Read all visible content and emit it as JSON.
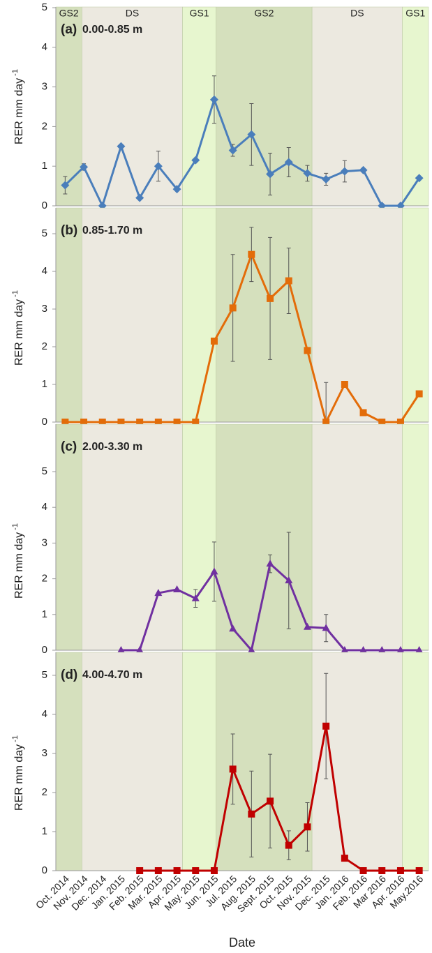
{
  "chart_data": [
    {
      "type": "line",
      "label": "(a)",
      "title": "0.00-0.85 m",
      "ylabel": "RER mm day",
      "ylabel_sup": "-1",
      "seasons": [
        "GS2",
        "DS",
        "GS1",
        "GS2",
        "DS",
        "GS1"
      ],
      "ylim": [
        0,
        5
      ],
      "yticks": [
        0,
        1,
        2,
        3,
        4,
        5
      ],
      "color": "#4a7ebb",
      "marker": "diamond",
      "values": [
        0.52,
        0.98,
        0,
        1.5,
        0.2,
        1.0,
        0.42,
        1.15,
        2.68,
        1.4,
        1.8,
        0.8,
        1.1,
        0.82,
        0.67,
        0.87,
        0.9,
        0,
        0,
        0.7
      ],
      "errors": [
        0.22,
        0.08,
        null,
        null,
        null,
        0.38,
        null,
        null,
        0.6,
        0.15,
        0.78,
        0.53,
        0.37,
        0.2,
        0.15,
        0.27,
        null,
        null,
        null,
        null
      ]
    },
    {
      "type": "line",
      "label": "(b)",
      "title": "0.85-1.70 m",
      "ylabel": "RER mm day",
      "ylabel_sup": "-1",
      "ylim": [
        0,
        5
      ],
      "yticks": [
        0,
        1,
        2,
        3,
        4,
        5
      ],
      "color": "#e36c09",
      "marker": "square",
      "values": [
        0,
        0,
        0,
        0,
        0,
        0,
        0,
        0,
        2.15,
        3.03,
        4.45,
        3.28,
        3.75,
        1.9,
        0,
        1.0,
        0.25,
        0,
        0,
        0.75
      ],
      "errors": [
        null,
        null,
        null,
        null,
        null,
        null,
        null,
        null,
        null,
        1.42,
        0.72,
        1.62,
        0.87,
        null,
        1.05,
        null,
        null,
        null,
        null,
        null
      ]
    },
    {
      "type": "line",
      "label": "(c)",
      "title": "2.00-3.30 m",
      "ylabel": "RER mm day",
      "ylabel_sup": "-1",
      "ylim": [
        0,
        5
      ],
      "yticks": [
        0,
        1,
        2,
        3,
        4,
        5
      ],
      "color": "#7030a0",
      "marker": "triangle",
      "values": [
        null,
        null,
        null,
        0,
        0,
        1.6,
        1.7,
        1.45,
        2.2,
        0.6,
        0,
        2.42,
        1.95,
        0.65,
        0.62,
        0,
        0,
        0,
        0,
        0
      ],
      "errors": [
        null,
        null,
        null,
        null,
        null,
        null,
        null,
        0.25,
        0.83,
        null,
        null,
        0.25,
        1.35,
        null,
        0.38,
        null,
        null,
        null,
        null,
        null
      ]
    },
    {
      "type": "line",
      "label": "(d)",
      "title": "4.00-4.70 m",
      "ylabel": "RER mm day",
      "ylabel_sup": "-1",
      "xlabel": "Date",
      "categories": [
        "Oct. 2014",
        "Nov. 2014",
        "Dec. 2014",
        "Jan. 2015",
        "Feb. 2015",
        "Mar. 2015",
        "Apr. 2015",
        "May. 2015",
        "Jun. 2015",
        "Jul. 2015",
        "Aug. 2015",
        "Sept. 2015",
        "Oct. 2015",
        "Nov. 2015",
        "Dec. 2015",
        "Jan. 2016",
        "Feb. 2016",
        "Mar 2016",
        "Apr. 2016",
        "May.2016"
      ],
      "ylim": [
        0,
        5
      ],
      "yticks": [
        0,
        1,
        2,
        3,
        4,
        5
      ],
      "color": "#c00000",
      "marker": "square",
      "values": [
        null,
        null,
        null,
        null,
        0,
        0,
        0,
        0,
        0,
        2.6,
        1.45,
        1.78,
        0.65,
        1.12,
        3.7,
        0.32,
        0,
        0,
        0,
        0
      ],
      "errors": [
        null,
        null,
        null,
        null,
        null,
        null,
        null,
        null,
        null,
        0.9,
        1.1,
        1.2,
        0.37,
        0.62,
        1.35,
        null,
        null,
        null,
        null,
        null
      ]
    }
  ]
}
